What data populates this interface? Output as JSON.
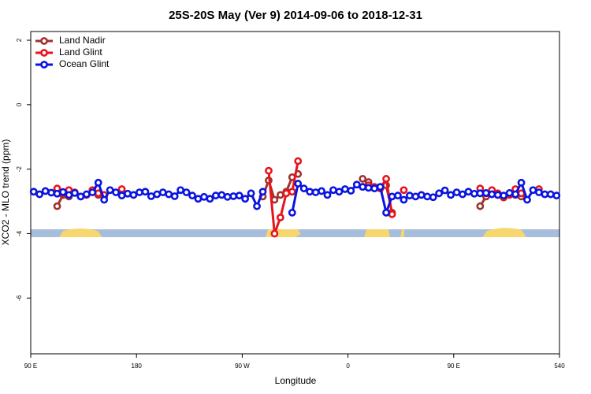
{
  "chart_data": {
    "type": "line",
    "title": "25S-20S May (Ver 9)   2014-09-06 to 2018-12-31",
    "x_label": "Longitude",
    "y_label": "XCO2 - MLO trend (ppm)",
    "x": [
      92.5,
      97.5,
      102.5,
      107.5,
      112.5,
      117.5,
      122.5,
      127.5,
      132.5,
      137.5,
      142.5,
      147.5,
      152.5,
      157.5,
      162.5,
      167.5,
      172.5,
      177.5,
      182.5,
      187.5,
      192.5,
      197.5,
      202.5,
      207.5,
      212.5,
      217.5,
      222.5,
      227.5,
      232.5,
      237.5,
      242.5,
      247.5,
      252.5,
      257.5,
      262.5,
      267.5,
      272.5,
      277.5,
      282.5,
      287.5,
      292.5,
      297.5,
      302.5,
      307.5,
      312.5,
      317.5,
      322.5,
      327.5,
      332.5,
      337.5,
      342.5,
      347.5,
      352.5,
      357.5,
      362.5,
      367.5,
      372.5,
      377.5,
      382.5,
      387.5,
      392.5,
      397.5,
      402.5,
      407.5,
      412.5,
      417.5,
      422.5,
      427.5,
      432.5,
      437.5,
      442.5,
      447.5,
      452.5,
      457.5,
      462.5,
      467.5,
      472.5,
      477.5,
      482.5,
      487.5,
      492.5,
      497.5,
      502.5,
      507.5,
      512.5,
      517.5,
      522.5,
      527.5,
      532.5,
      537.5
    ],
    "series": [
      {
        "name": "Land Nadir",
        "color": "#a0322e",
        "values": [
          null,
          null,
          null,
          null,
          -3.15,
          -2.8,
          -2.85,
          null,
          null,
          null,
          null,
          -2.8,
          -2.85,
          null,
          null,
          null,
          null,
          null,
          null,
          null,
          null,
          null,
          null,
          null,
          null,
          null,
          null,
          null,
          null,
          null,
          null,
          null,
          null,
          null,
          null,
          null,
          null,
          null,
          null,
          -2.85,
          -2.35,
          -2.95,
          -2.8,
          -2.7,
          -2.25,
          -2.15,
          null,
          null,
          null,
          null,
          null,
          null,
          null,
          null,
          null,
          null,
          -2.3,
          -2.4,
          -2.55,
          -2.6,
          -2.5,
          -3.35,
          null,
          null,
          null,
          null,
          null,
          null,
          null,
          null,
          null,
          null,
          null,
          null,
          null,
          null,
          -3.15,
          -2.85,
          -2.7,
          -2.8,
          -2.85,
          -2.75,
          -2.8,
          -2.85,
          null,
          null,
          null,
          null,
          null,
          null
        ]
      },
      {
        "name": "Land Glint",
        "color": "#e8141c",
        "values": [
          null,
          null,
          null,
          null,
          -2.6,
          -2.75,
          -2.65,
          -2.72,
          -2.85,
          -2.8,
          -2.65,
          -2.75,
          -2.8,
          null,
          null,
          -2.62,
          null,
          null,
          null,
          null,
          null,
          null,
          null,
          null,
          null,
          null,
          null,
          null,
          null,
          null,
          null,
          null,
          null,
          null,
          null,
          null,
          null,
          null,
          null,
          null,
          -2.05,
          -4,
          -3.5,
          -2.75,
          -2.7,
          -1.75,
          null,
          null,
          null,
          null,
          null,
          null,
          null,
          null,
          null,
          null,
          -2.55,
          -2.5,
          -2.58,
          -2.6,
          -2.3,
          -3.4,
          null,
          -2.65,
          null,
          null,
          null,
          null,
          null,
          null,
          null,
          null,
          null,
          null,
          null,
          null,
          -2.6,
          -2.75,
          -2.65,
          -2.75,
          -2.88,
          -2.8,
          -2.62,
          -2.75,
          null,
          null,
          -2.62,
          null,
          null,
          null
        ]
      },
      {
        "name": "Ocean Glint",
        "color": "#0a14e0",
        "values": [
          -2.7,
          -2.78,
          -2.68,
          -2.73,
          -2.76,
          -2.71,
          -2.8,
          -2.74,
          -2.85,
          -2.78,
          -2.72,
          -2.42,
          -2.95,
          -2.65,
          -2.72,
          -2.82,
          -2.76,
          -2.8,
          -2.72,
          -2.7,
          -2.84,
          -2.78,
          -2.72,
          -2.78,
          -2.84,
          -2.65,
          -2.72,
          -2.82,
          -2.92,
          -2.86,
          -2.92,
          -2.82,
          -2.8,
          -2.86,
          -2.84,
          -2.82,
          -2.92,
          -2.75,
          -3.15,
          -2.7,
          null,
          null,
          null,
          null,
          -3.35,
          -2.45,
          -2.6,
          -2.7,
          -2.72,
          -2.68,
          -2.8,
          -2.65,
          -2.7,
          -2.62,
          -2.67,
          -2.48,
          -2.55,
          -2.58,
          -2.6,
          -2.55,
          -3.35,
          -2.85,
          -2.82,
          -2.95,
          -2.82,
          -2.85,
          -2.8,
          -2.85,
          -2.87,
          -2.75,
          -2.66,
          -2.8,
          -2.72,
          -2.78,
          -2.7,
          -2.76,
          -2.75,
          -2.74,
          -2.78,
          -2.8,
          -2.82,
          -2.74,
          -2.78,
          -2.42,
          -2.95,
          -2.65,
          -2.72,
          -2.78,
          -2.78,
          -2.82
        ]
      }
    ],
    "xlim": [
      90,
      540
    ],
    "ylim": [
      -7.73,
      2.27
    ],
    "xticks": [
      {
        "value": 90,
        "label": "90 E"
      },
      180,
      {
        "value": 270,
        "label": "90 W"
      },
      {
        "value": 360,
        "label": "0"
      },
      {
        "value": 450,
        "label": "90 E"
      },
      540
    ],
    "yticks": [
      -6,
      -4,
      -2,
      0,
      2
    ],
    "legend": "upper-left"
  }
}
